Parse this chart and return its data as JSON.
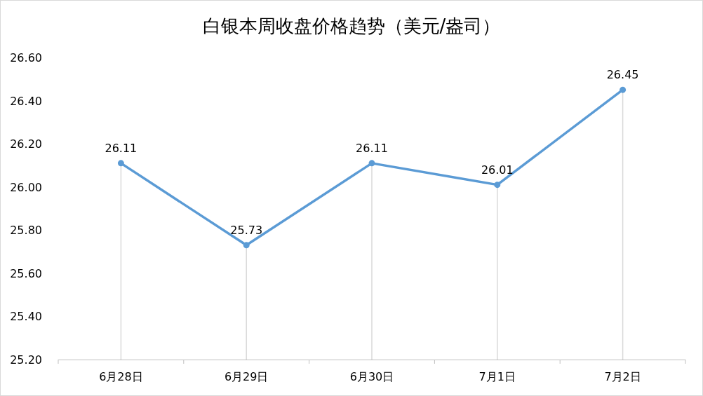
{
  "chart_data": {
    "type": "line",
    "title": "白银本周收盘价格趋势（美元/盎司）",
    "categories": [
      "6月28日",
      "6月29日",
      "6月30日",
      "7月1日",
      "7月2日"
    ],
    "values": [
      26.11,
      25.73,
      26.11,
      26.01,
      26.45
    ],
    "color": "#5b9bd5",
    "marker": "circle",
    "data_labels": true,
    "grid": "x",
    "ylim": [
      25.2,
      26.6
    ],
    "yticks": [
      {
        "value": 25.2,
        "label": "25.20"
      },
      {
        "value": 25.4,
        "label": "25.40"
      },
      {
        "value": 25.6,
        "label": "25.60"
      },
      {
        "value": 25.8,
        "label": "25.80"
      },
      {
        "value": 26.0,
        "label": "26.00"
      },
      {
        "value": 26.2,
        "label": "26.20"
      },
      {
        "value": 26.4,
        "label": "26.40"
      },
      {
        "value": 26.6,
        "label": "26.60"
      }
    ]
  }
}
